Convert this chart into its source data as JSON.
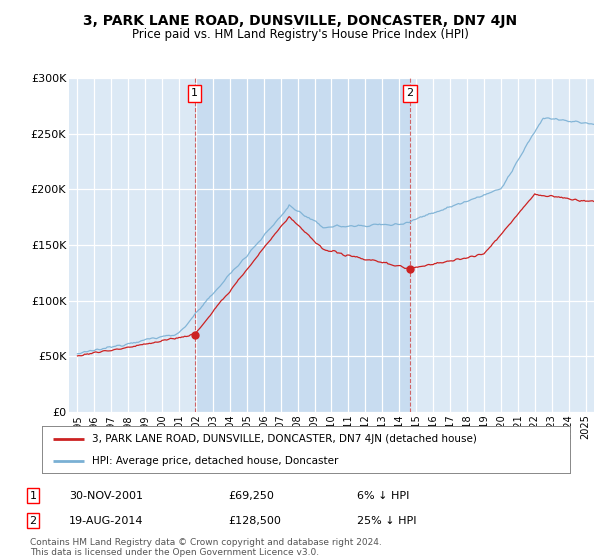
{
  "title": "3, PARK LANE ROAD, DUNSVILLE, DONCASTER, DN7 4JN",
  "subtitle": "Price paid vs. HM Land Registry's House Price Index (HPI)",
  "ylim": [
    0,
    300000
  ],
  "xlim_start": 1994.5,
  "xlim_end": 2025.5,
  "yticks": [
    0,
    50000,
    100000,
    150000,
    200000,
    250000,
    300000
  ],
  "ytick_labels": [
    "£0",
    "£50K",
    "£100K",
    "£150K",
    "£200K",
    "£250K",
    "£300K"
  ],
  "xticks": [
    1995,
    1996,
    1997,
    1998,
    1999,
    2000,
    2001,
    2002,
    2003,
    2004,
    2005,
    2006,
    2007,
    2008,
    2009,
    2010,
    2011,
    2012,
    2013,
    2014,
    2015,
    2016,
    2017,
    2018,
    2019,
    2020,
    2021,
    2022,
    2023,
    2024,
    2025
  ],
  "sale1_x": 2001.917,
  "sale1_y": 69250,
  "sale1_label": "1",
  "sale1_date": "30-NOV-2001",
  "sale1_price": "£69,250",
  "sale1_hpi": "6% ↓ HPI",
  "sale2_x": 2014.633,
  "sale2_y": 128500,
  "sale2_label": "2",
  "sale2_date": "19-AUG-2014",
  "sale2_price": "£128,500",
  "sale2_hpi": "25% ↓ HPI",
  "legend_line1": "3, PARK LANE ROAD, DUNSVILLE, DONCASTER, DN7 4JN (detached house)",
  "legend_line2": "HPI: Average price, detached house, Doncaster",
  "footer": "Contains HM Land Registry data © Crown copyright and database right 2024.\nThis data is licensed under the Open Government Licence v3.0.",
  "plot_bg_color": "#dce9f5",
  "highlight_bg_color": "#c8dcf0",
  "grid_color": "#ffffff",
  "hpi_line_color": "#7ab0d4",
  "property_line_color": "#cc2222",
  "sale_marker_color": "#cc2222",
  "vline_color": "#cc4444"
}
